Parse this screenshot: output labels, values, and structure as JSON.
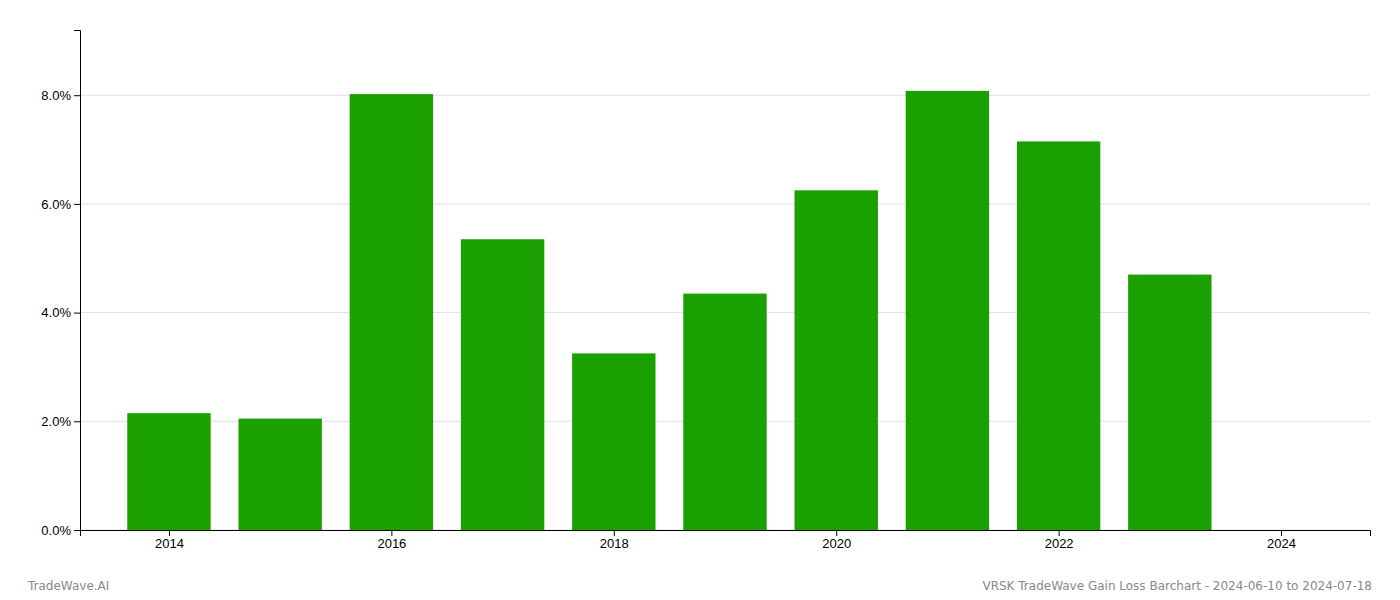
{
  "chart_data": {
    "type": "bar",
    "x": [
      2014,
      2015,
      2016,
      2017,
      2018,
      2019,
      2020,
      2021,
      2022,
      2023
    ],
    "values": [
      0.0215,
      0.0205,
      0.0802,
      0.0535,
      0.0325,
      0.0435,
      0.0625,
      0.0808,
      0.0715,
      0.047
    ],
    "color": "#1aa000",
    "xlim": [
      2013.2,
      2024.8
    ],
    "xticks": [
      2014,
      2016,
      2018,
      2020,
      2022,
      2024
    ],
    "ylim": [
      0,
      0.092
    ],
    "yticks": [
      {
        "value": 0.0,
        "label": "0.0%"
      },
      {
        "value": 0.02,
        "label": "2.0%"
      },
      {
        "value": 0.04,
        "label": "4.0%"
      },
      {
        "value": 0.06,
        "label": "6.0%"
      },
      {
        "value": 0.08,
        "label": "8.0%"
      }
    ],
    "grid": true,
    "annotations": [
      "TradeWave.AI",
      "VRSK TradeWave Gain Loss Barchart - 2024-06-10 to 2024-07-18"
    ]
  }
}
